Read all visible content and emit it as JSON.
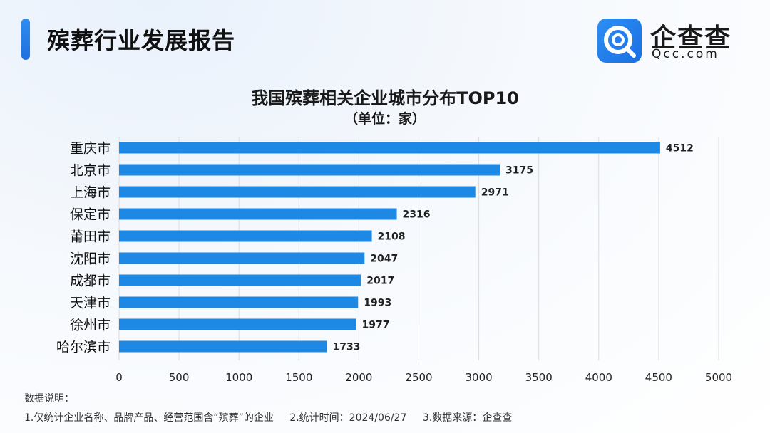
{
  "header": {
    "title": "殡葬行业发展报告"
  },
  "logo": {
    "cn": "企查查",
    "en": "Qcc.com"
  },
  "notes": {
    "title": "数据说明：",
    "items": [
      "1.仅统计企业名称、品牌产品、经营范围含“殡葬”的企业",
      "2.统计时间：2024/06/27",
      "3.数据来源：企查查"
    ]
  },
  "chart_data": {
    "type": "bar",
    "orientation": "horizontal",
    "title": "我国殡葬相关企业城市分布TOP10",
    "subtitle": "（单位：家）",
    "categories": [
      "重庆市",
      "北京市",
      "上海市",
      "保定市",
      "莆田市",
      "沈阳市",
      "成都市",
      "天津市",
      "徐州市",
      "哈尔滨市"
    ],
    "values": [
      4512,
      3175,
      2971,
      2316,
      2108,
      2047,
      2017,
      1993,
      1977,
      1733
    ],
    "xlim": [
      0,
      5000
    ],
    "xticks": [
      0,
      500,
      1000,
      1500,
      2000,
      2500,
      3000,
      3500,
      4000,
      4500,
      5000
    ],
    "grid": true,
    "bar_color": "#1e88e5"
  }
}
